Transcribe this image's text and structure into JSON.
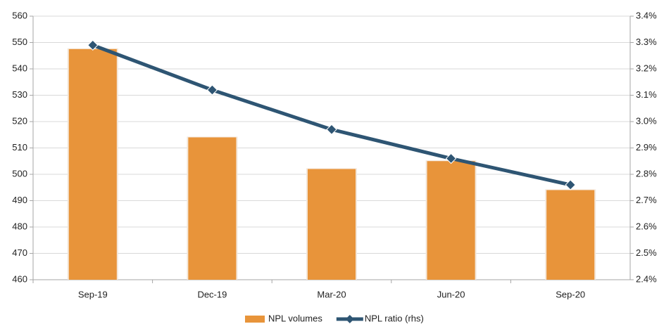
{
  "chart_data": {
    "type": "bar-line",
    "categories": [
      "Sep-19",
      "Dec-19",
      "Mar-20",
      "Jun-20",
      "Sep-20"
    ],
    "series": [
      {
        "name": "NPL volumes",
        "type": "bar",
        "color": "#e8943a",
        "values": [
          547.5,
          514,
          502,
          505,
          494
        ]
      },
      {
        "name": "NPL ratio (rhs)",
        "type": "line",
        "axis": "y2",
        "color": "#2e5573",
        "values": [
          3.29,
          3.12,
          2.97,
          2.86,
          2.76
        ]
      }
    ],
    "ylim": [
      460,
      560
    ],
    "yticks": [
      460,
      470,
      480,
      490,
      500,
      510,
      520,
      530,
      540,
      550,
      560
    ],
    "y2lim": [
      2.4,
      3.4
    ],
    "y2ticks": [
      {
        "value": 2.4,
        "label": "2.4%"
      },
      {
        "value": 2.5,
        "label": "2.5%"
      },
      {
        "value": 2.6,
        "label": "2.6%"
      },
      {
        "value": 2.7,
        "label": "2.7%"
      },
      {
        "value": 2.8,
        "label": "2.8%"
      },
      {
        "value": 2.9,
        "label": "2.9%"
      },
      {
        "value": 3.0,
        "label": "3.0%"
      },
      {
        "value": 3.1,
        "label": "3.1%"
      },
      {
        "value": 3.2,
        "label": "3.2%"
      },
      {
        "value": 3.3,
        "label": "3.3%"
      },
      {
        "value": 3.4,
        "label": "3.4%"
      }
    ],
    "grid": true,
    "legend": "bottom"
  }
}
